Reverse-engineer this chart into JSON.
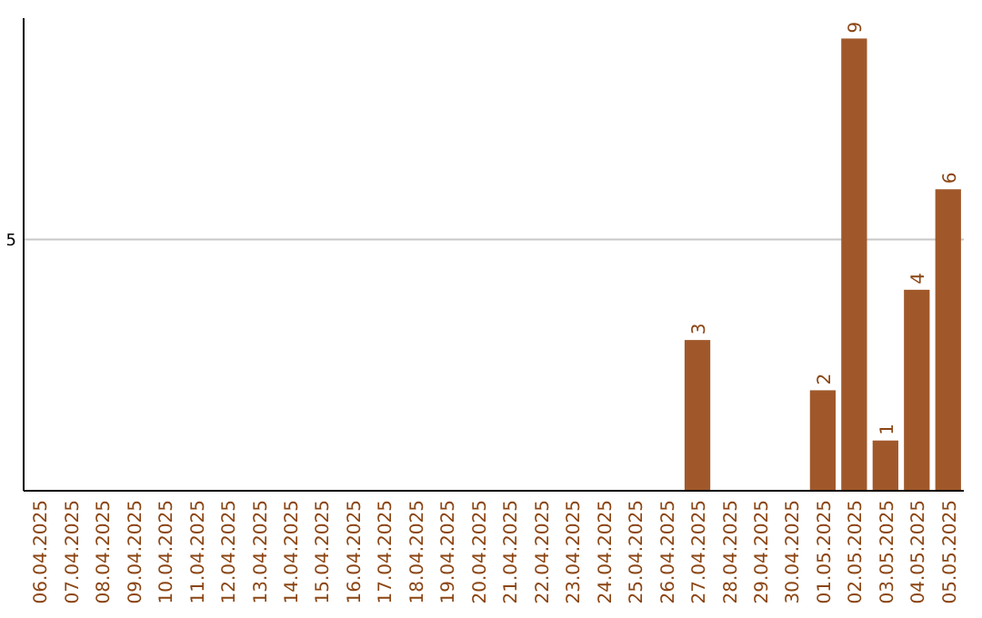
{
  "chart_data": {
    "type": "bar",
    "categories": [
      "06.04.2025",
      "07.04.2025",
      "08.04.2025",
      "09.04.2025",
      "10.04.2025",
      "11.04.2025",
      "12.04.2025",
      "13.04.2025",
      "14.04.2025",
      "15.04.2025",
      "16.04.2025",
      "17.04.2025",
      "18.04.2025",
      "19.04.2025",
      "20.04.2025",
      "21.04.2025",
      "22.04.2025",
      "23.04.2025",
      "24.04.2025",
      "25.04.2025",
      "26.04.2025",
      "27.04.2025",
      "28.04.2025",
      "29.04.2025",
      "30.04.2025",
      "01.05.2025",
      "02.05.2025",
      "03.05.2025",
      "04.05.2025",
      "05.05.2025"
    ],
    "values": [
      null,
      null,
      null,
      null,
      null,
      null,
      null,
      null,
      null,
      null,
      null,
      null,
      null,
      null,
      null,
      null,
      null,
      null,
      null,
      null,
      null,
      3,
      null,
      null,
      null,
      2,
      9,
      1,
      4,
      6
    ],
    "data_labels": true,
    "color": "#a0582a",
    "ref_lines": [
      {
        "axis": "y",
        "value": 5,
        "label": "5",
        "color": "#c8c8c8"
      }
    ]
  }
}
